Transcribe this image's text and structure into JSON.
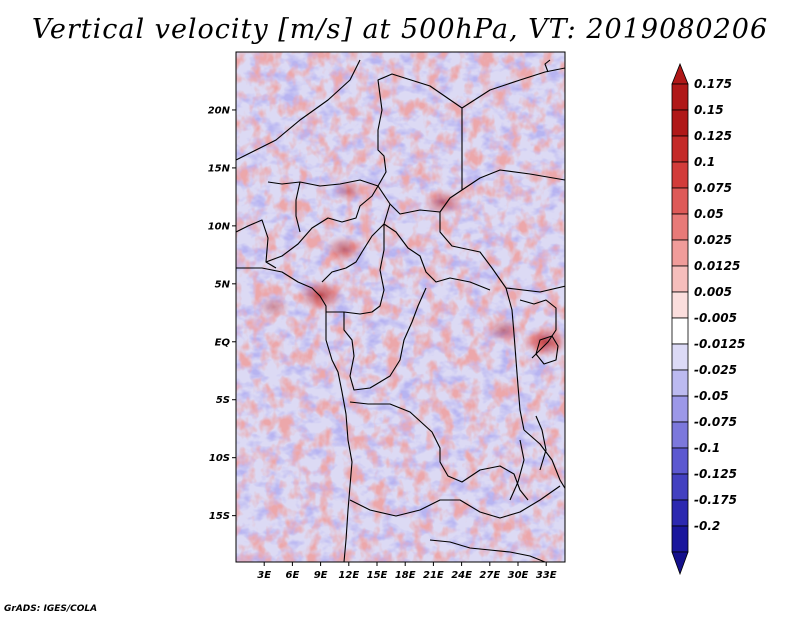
{
  "title": "Vertical velocity [m/s] at 500hPa, VT: 2019080206",
  "credit": "GrADS: IGES/COLA",
  "map": {
    "lon_range": [
      0,
      35
    ],
    "lat_range": [
      -19,
      25
    ],
    "lat_ticks": [
      {
        "value": 20,
        "label": "20N"
      },
      {
        "value": 15,
        "label": "15N"
      },
      {
        "value": 10,
        "label": "10N"
      },
      {
        "value": 5,
        "label": "5N"
      },
      {
        "value": 0,
        "label": "EQ"
      },
      {
        "value": -5,
        "label": "5S"
      },
      {
        "value": -10,
        "label": "10S"
      },
      {
        "value": -15,
        "label": "15S"
      }
    ],
    "lon_ticks": [
      {
        "value": 3,
        "label": "3E"
      },
      {
        "value": 6,
        "label": "6E"
      },
      {
        "value": 9,
        "label": "9E"
      },
      {
        "value": 12,
        "label": "12E"
      },
      {
        "value": 15,
        "label": "15E"
      },
      {
        "value": 18,
        "label": "18E"
      },
      {
        "value": 21,
        "label": "21E"
      },
      {
        "value": 24,
        "label": "24E"
      },
      {
        "value": 27,
        "label": "27E"
      },
      {
        "value": 30,
        "label": "30E"
      },
      {
        "value": 33,
        "label": "33E"
      }
    ],
    "field_hotspots": [
      {
        "lon": 9.0,
        "lat": 4.0,
        "strength": 0.9
      },
      {
        "lon": 11.5,
        "lat": 8.0,
        "strength": 0.7
      },
      {
        "lon": 22.0,
        "lat": 12.0,
        "strength": 0.7
      },
      {
        "lon": 28.5,
        "lat": 1.0,
        "strength": 0.6
      },
      {
        "lon": 33.0,
        "lat": 0.0,
        "strength": 0.9
      },
      {
        "lon": 12.0,
        "lat": 13.0,
        "strength": 0.5
      },
      {
        "lon": 4.0,
        "lat": 3.0,
        "strength": 0.5
      }
    ]
  },
  "colorbar": {
    "levels": [
      {
        "label": "0.175",
        "color": "#b01818"
      },
      {
        "label": "0.15",
        "color": "#b01818"
      },
      {
        "label": "0.125",
        "color": "#c42a28"
      },
      {
        "label": "0.1",
        "color": "#d23c3a"
      },
      {
        "label": "0.075",
        "color": "#de5a58"
      },
      {
        "label": "0.05",
        "color": "#e87a78"
      },
      {
        "label": "0.025",
        "color": "#f09c9a"
      },
      {
        "label": "0.0125",
        "color": "#f6bebc"
      },
      {
        "label": "0.005",
        "color": "#fbdedd"
      },
      {
        "label": "-0.005",
        "color": "#ffffff"
      },
      {
        "label": "-0.0125",
        "color": "#dcdaf6"
      },
      {
        "label": "-0.025",
        "color": "#bcbaf0"
      },
      {
        "label": "-0.05",
        "color": "#9c98e8"
      },
      {
        "label": "-0.075",
        "color": "#7c78dc"
      },
      {
        "label": "-0.1",
        "color": "#5c58d0"
      },
      {
        "label": "-0.125",
        "color": "#4340c0"
      },
      {
        "label": "-0.175",
        "color": "#2c28b0"
      },
      {
        "label": "-0.2",
        "color": "#1a169c"
      }
    ],
    "top_arrow_color": "#b01818",
    "bottom_arrow_color": "#14108c"
  }
}
